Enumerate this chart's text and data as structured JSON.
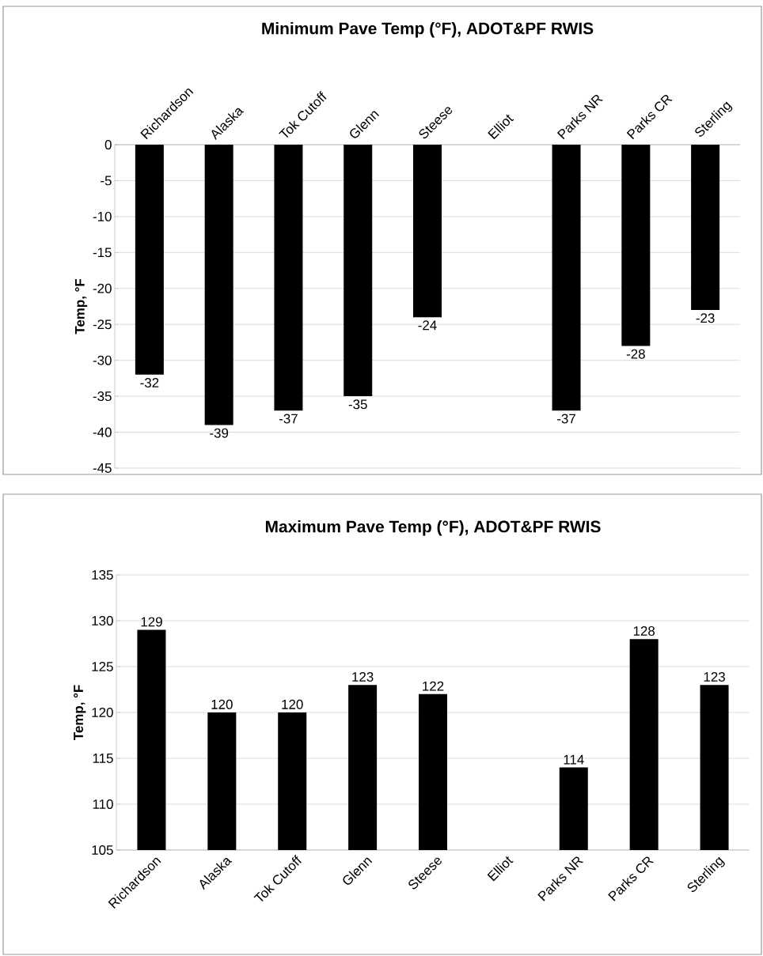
{
  "chart_data": [
    {
      "type": "bar",
      "title": "Minimum Pave Temp (°F), ADOT&PF RWIS",
      "ylabel": "Temp, °F",
      "categories": [
        "Richardson",
        "Alaska",
        "Tok Cutoff",
        "Glenn",
        "Steese",
        "Elliot",
        "Parks NR",
        "Parks CR",
        "Sterling"
      ],
      "values": [
        -32,
        -39,
        -37,
        -35,
        -24,
        null,
        -37,
        -28,
        -23
      ],
      "color": "#000000",
      "ylim": [
        -45,
        0
      ],
      "yticks": [
        -45,
        -40,
        -35,
        -30,
        -25,
        -20,
        -15,
        -10,
        -5,
        0
      ],
      "grid": "y",
      "data_labels": true
    },
    {
      "type": "bar",
      "title": "Maximum Pave Temp (°F), ADOT&PF RWIS",
      "ylabel": "Temp, °F",
      "categories": [
        "Richardson",
        "Alaska",
        "Tok Cutoff",
        "Glenn",
        "Steese",
        "Elliot",
        "Parks NR",
        "Parks CR",
        "Sterling"
      ],
      "values": [
        129,
        120,
        120,
        123,
        122,
        null,
        114,
        128,
        123
      ],
      "color": "#000000",
      "ylim": [
        105,
        135
      ],
      "yticks": [
        105,
        110,
        115,
        120,
        125,
        130,
        135
      ],
      "grid": "y",
      "data_labels": true
    }
  ]
}
